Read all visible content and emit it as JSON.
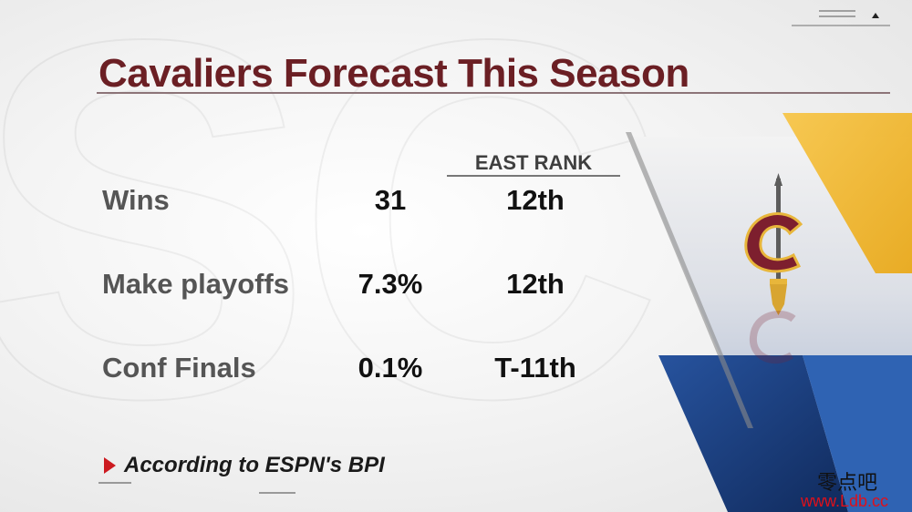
{
  "title": "Cavaliers Forecast This Season",
  "column_header": "EAST RANK",
  "rows": [
    {
      "label": "Wins",
      "value": "31",
      "rank": "12th"
    },
    {
      "label": "Make playoffs",
      "value": "7.3%",
      "rank": "12th"
    },
    {
      "label": "Conf Finals",
      "value": "0.1%",
      "rank": "T-11th"
    }
  ],
  "footnote": "According to ESPN's BPI",
  "watermark": {
    "chinese": "零点吧",
    "url": "www.Ldb.cc"
  },
  "colors": {
    "title": "#6b1f24",
    "accent_red": "#cc1a20",
    "wine": "#7d1f2e",
    "gold": "#f2b82e",
    "navy": "#1a3d7c"
  },
  "icons": {
    "team_logo": "cavaliers-sword-c-logo"
  }
}
